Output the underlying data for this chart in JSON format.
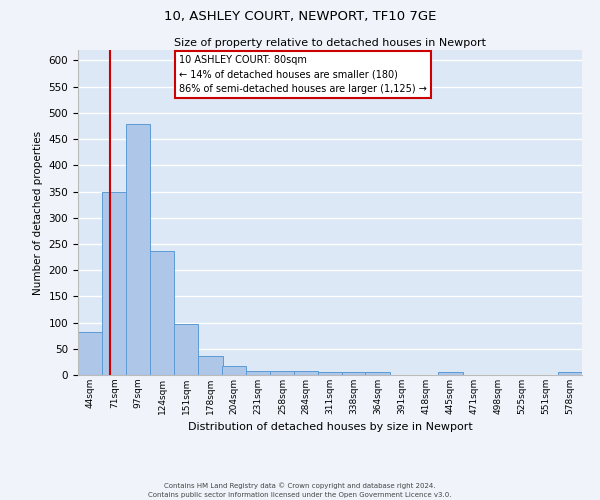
{
  "title": "10, ASHLEY COURT, NEWPORT, TF10 7GE",
  "subtitle": "Size of property relative to detached houses in Newport",
  "xlabel": "Distribution of detached houses by size in Newport",
  "ylabel": "Number of detached properties",
  "bin_labels": [
    "44sqm",
    "71sqm",
    "97sqm",
    "124sqm",
    "151sqm",
    "178sqm",
    "204sqm",
    "231sqm",
    "258sqm",
    "284sqm",
    "311sqm",
    "338sqm",
    "364sqm",
    "391sqm",
    "418sqm",
    "445sqm",
    "471sqm",
    "498sqm",
    "525sqm",
    "551sqm",
    "578sqm"
  ],
  "bin_edges": [
    44,
    71,
    97,
    124,
    151,
    178,
    204,
    231,
    258,
    284,
    311,
    338,
    364,
    391,
    418,
    445,
    471,
    498,
    525,
    551,
    578
  ],
  "bar_heights": [
    82,
    350,
    478,
    236,
    97,
    36,
    18,
    7,
    7,
    7,
    5,
    5,
    5,
    0,
    0,
    5,
    0,
    0,
    0,
    0,
    5
  ],
  "bar_color": "#aec6e8",
  "bar_edgecolor": "#5b9bd5",
  "bg_color": "#dce8f5",
  "grid_color": "#ffffff",
  "fig_bg_color": "#f0f4fa",
  "red_line_x": 80,
  "ylim": [
    0,
    620
  ],
  "yticks": [
    0,
    50,
    100,
    150,
    200,
    250,
    300,
    350,
    400,
    450,
    500,
    550,
    600
  ],
  "annotation_title": "10 ASHLEY COURT: 80sqm",
  "annotation_line1": "← 14% of detached houses are smaller (180)",
  "annotation_line2": "86% of semi-detached houses are larger (1,125) →",
  "annotation_box_color": "#cc0000",
  "footer_line1": "Contains HM Land Registry data © Crown copyright and database right 2024.",
  "footer_line2": "Contains public sector information licensed under the Open Government Licence v3.0."
}
